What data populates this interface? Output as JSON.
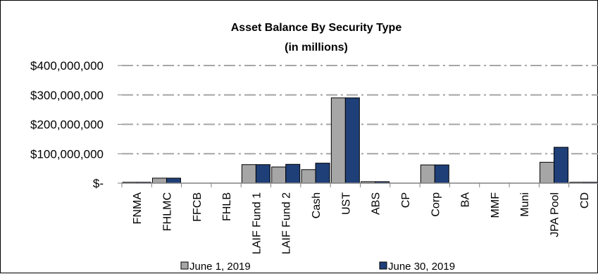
{
  "chart_data": {
    "type": "bar",
    "title": "Asset Balance By Security Type",
    "subtitle": "(in millions)",
    "categories": [
      "FNMA",
      "FHLMC",
      "FFCB",
      "FHLB",
      "LAIF Fund 1",
      "LAIF Fund 2",
      "Cash",
      "UST",
      "ABS",
      "CP",
      "Corp",
      "BA",
      "MMF",
      "Muni",
      "JPA Pool",
      "CD"
    ],
    "series": [
      {
        "name": "June 1, 2019",
        "color": "#a6a6a6",
        "values": [
          3000000,
          17000000,
          0,
          0,
          63000000,
          55000000,
          46000000,
          290000000,
          5000000,
          0,
          62000000,
          0,
          0,
          0,
          71000000,
          3000000
        ]
      },
      {
        "name": "June 30, 2019",
        "color": "#1f3f78",
        "values": [
          3000000,
          17000000,
          0,
          0,
          63000000,
          64000000,
          68000000,
          290000000,
          5000000,
          0,
          62000000,
          0,
          0,
          0,
          122000000,
          3000000
        ]
      }
    ],
    "ylim": [
      0,
      400000000
    ],
    "yticks": [
      {
        "value": 0,
        "label": "$-"
      },
      {
        "value": 100000000,
        "label": "$100,000,000"
      },
      {
        "value": 200000000,
        "label": "$200,000,000"
      },
      {
        "value": 300000000,
        "label": "$300,000,000"
      },
      {
        "value": 400000000,
        "label": "$400,000,000"
      }
    ],
    "grid": true,
    "legend_position": "bottom"
  }
}
